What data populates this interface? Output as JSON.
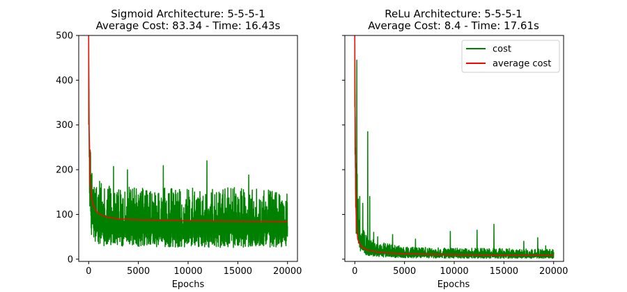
{
  "chart_data": [
    {
      "type": "line",
      "title_line1": "Sigmoid Architecture: 5-5-5-1",
      "title_line2": "Average Cost: 83.34 - Time: 16.43s",
      "xlabel": "Epochs",
      "ylabel": "",
      "xlim": [
        -1000,
        21000
      ],
      "ylim": [
        -5,
        500
      ],
      "xticks": [
        0,
        5000,
        10000,
        15000,
        20000
      ],
      "yticks": [
        0,
        100,
        200,
        300,
        400,
        500
      ],
      "legend": null,
      "series": [
        {
          "name": "cost",
          "color": "#008000",
          "style": "noisy",
          "envelope_low_x": [
            0,
            100,
            300,
            600,
            1000,
            2000,
            5000,
            10000,
            15000,
            20000
          ],
          "envelope_low_y": [
            300,
            120,
            50,
            35,
            30,
            30,
            28,
            26,
            26,
            27
          ],
          "envelope_high_x": [
            0,
            100,
            300,
            600,
            1000,
            2000,
            5000,
            10000,
            15000,
            20000
          ],
          "envelope_high_y": [
            480,
            270,
            200,
            175,
            175,
            165,
            160,
            162,
            160,
            155
          ],
          "spikes": [
            [
              2500,
              207
            ],
            [
              7500,
              209
            ],
            [
              11900,
              220
            ],
            [
              3900,
              200
            ],
            [
              16100,
              188
            ]
          ]
        },
        {
          "name": "average cost",
          "color": "#ff0000",
          "style": "smooth",
          "x": [
            0,
            50,
            150,
            300,
            500,
            800,
            1200,
            2000,
            3000,
            5000,
            7000,
            10000,
            15000,
            20000
          ],
          "y": [
            500,
            290,
            175,
            135,
            118,
            106,
            99,
            93,
            90,
            88,
            87,
            86,
            85,
            84
          ]
        }
      ]
    },
    {
      "type": "line",
      "title_line1": "ReLu Architecture: 5-5-5-1",
      "title_line2": "Average Cost: 8.4 - Time: 17.61s",
      "xlabel": "Epochs",
      "ylabel": "",
      "xlim": [
        -1000,
        21000
      ],
      "ylim": [
        -5,
        500
      ],
      "xticks": [
        0,
        5000,
        10000,
        15000,
        20000
      ],
      "yticks": [
        0,
        100,
        200,
        300,
        400,
        500
      ],
      "legend": {
        "position": "top-right",
        "entries": [
          "cost",
          "average cost"
        ]
      },
      "series": [
        {
          "name": "cost",
          "color": "#008000",
          "style": "noisy",
          "envelope_low_x": [
            0,
            100,
            500,
            1000,
            2000,
            5000,
            10000,
            15000,
            20000
          ],
          "envelope_low_y": [
            300,
            60,
            20,
            10,
            5,
            3,
            2,
            2,
            2
          ],
          "envelope_high_x": [
            0,
            100,
            500,
            1000,
            2000,
            5000,
            10000,
            15000,
            20000
          ],
          "envelope_high_y": [
            480,
            250,
            90,
            60,
            40,
            28,
            25,
            24,
            22
          ],
          "spikes": [
            [
              200,
              445
            ],
            [
              500,
              140
            ],
            [
              800,
              125
            ],
            [
              1300,
              285
            ],
            [
              1500,
              140
            ],
            [
              1900,
              60
            ],
            [
              2300,
              50
            ],
            [
              3800,
              55
            ],
            [
              6100,
              45
            ],
            [
              9600,
              62
            ],
            [
              12300,
              65
            ],
            [
              14000,
              78
            ],
            [
              17000,
              40
            ],
            [
              18400,
              48
            ],
            [
              19200,
              30
            ]
          ]
        },
        {
          "name": "average cost",
          "color": "#ff0000",
          "style": "smooth",
          "x": [
            0,
            30,
            80,
            150,
            300,
            500,
            800,
            1200,
            2000,
            3000,
            5000,
            8000,
            12000,
            16000,
            20000
          ],
          "y": [
            500,
            350,
            160,
            80,
            45,
            33,
            26,
            21,
            17,
            14.5,
            12,
            10.5,
            9.5,
            9,
            8.4
          ]
        }
      ]
    }
  ]
}
